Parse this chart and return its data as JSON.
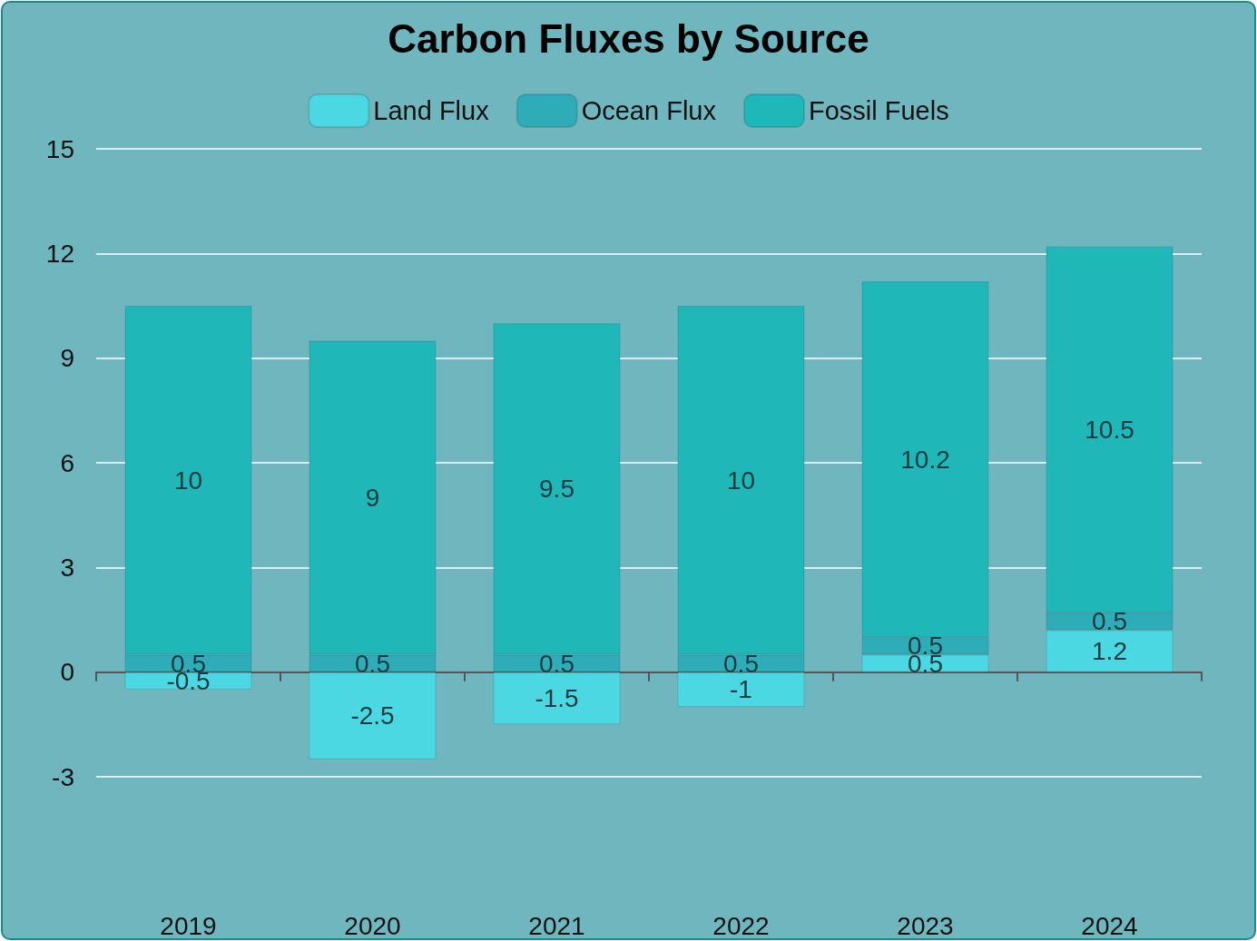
{
  "chart_data": {
    "type": "bar",
    "title": "Carbon Fluxes by Source",
    "categories": [
      "2019",
      "2020",
      "2021",
      "2022",
      "2023",
      "2024"
    ],
    "series": [
      {
        "name": "Land Flux",
        "color": "#4cd8e2",
        "values": [
          -0.5,
          -2.5,
          -1.5,
          -1,
          0.5,
          1.2
        ]
      },
      {
        "name": "Ocean Flux",
        "color": "#2eacb8",
        "values": [
          0.5,
          0.5,
          0.5,
          0.5,
          0.5,
          0.5
        ]
      },
      {
        "name": "Fossil Fuels",
        "color": "#1fb7b8",
        "values": [
          10,
          9,
          9.5,
          10,
          10.2,
          10.5
        ]
      }
    ],
    "stacked": true,
    "ylim": [
      -3,
      15
    ],
    "yticks": [
      -3,
      0,
      3,
      6,
      9,
      12,
      15
    ],
    "grid": "y",
    "legend": "top",
    "data_labels": true
  }
}
